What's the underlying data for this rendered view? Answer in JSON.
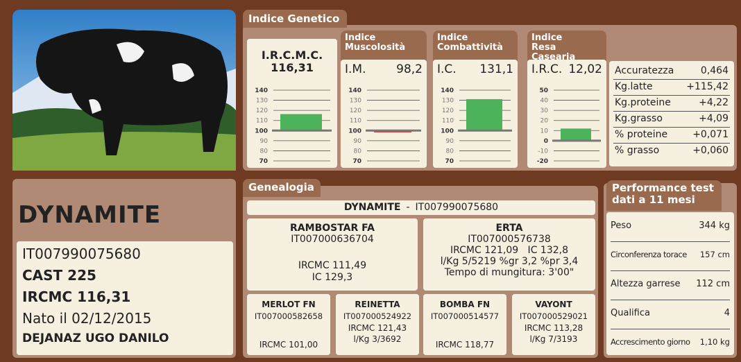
{
  "genetic_index": {
    "title": "Indice Genetico",
    "gauges": [
      {
        "name": "I.R.C.M.C.",
        "value": 116.31,
        "value_label": "116,31",
        "ylim": [
          70,
          140
        ],
        "yticks": [
          140,
          130,
          120,
          110,
          100,
          90,
          80,
          70
        ],
        "baseline": 100,
        "color": "#4cb35a"
      },
      {
        "heading": [
          "Indice",
          "Muscolosità"
        ],
        "name": "I.M.",
        "value": 98.2,
        "value_label": "98,2",
        "ylim": [
          70,
          140
        ],
        "yticks": [
          140,
          130,
          120,
          110,
          100,
          90,
          80,
          70
        ],
        "baseline": 100,
        "color": "#d23a35"
      },
      {
        "heading": [
          "Indice",
          "Combattività"
        ],
        "name": "I.C.",
        "value": 131.1,
        "value_label": "131,1",
        "ylim": [
          70,
          140
        ],
        "yticks": [
          140,
          130,
          120,
          110,
          100,
          90,
          80,
          70
        ],
        "baseline": 100,
        "color": "#4cb35a"
      },
      {
        "heading": [
          "Indice",
          "Resa Casearia"
        ],
        "name": "I.R.C.",
        "value": 12.02,
        "value_label": "12,02",
        "ylim": [
          -20,
          50
        ],
        "yticks": [
          50,
          40,
          30,
          20,
          10,
          0,
          -10,
          -20
        ],
        "baseline": 0,
        "color": "#4cb35a"
      }
    ],
    "resa_table": [
      [
        "Accuratezza",
        "0,464"
      ],
      [
        "Kg.latte",
        "+115,42"
      ],
      [
        "Kg.proteine",
        "+4,22"
      ],
      [
        "Kg.grasso",
        "+4,09"
      ],
      [
        "% proteine",
        "+0,071"
      ],
      [
        "% grasso",
        "+0,060"
      ]
    ]
  },
  "animal": {
    "name": "DYNAMITE",
    "id": "IT007990075680",
    "cast": "CAST 225",
    "ircmc": "IRCMC 116,31",
    "born": "Nato il 02/12/2015",
    "owner": "DEJANAZ UGO DANILO"
  },
  "genealogy": {
    "title": "Genealogia",
    "subject": {
      "name": "DYNAMITE",
      "separator": "-",
      "id": "IT007990075680"
    },
    "sire": {
      "name": "RAMBOSTAR FA",
      "id": "IT007000636704",
      "lines": [
        "IRCMC 111,49",
        "IC 129,3"
      ]
    },
    "dam": {
      "name": "ERTA",
      "id": "IT007000576738",
      "lines": [
        "IRCMC 121,09   IC 132,8",
        "l/Kg 5/5219 %gr 3,2 %pr 3,4",
        "Tempo di mungitura: 3'00\""
      ]
    },
    "grandparents": [
      {
        "name": "MERLOT FN",
        "id": "IT007000582658",
        "lines": [
          "IRCMC 101,00"
        ]
      },
      {
        "name": "REINETTA",
        "id": "IT007000524922",
        "lines": [
          "IRCMC 121,43",
          "l/Kg 3/3692"
        ]
      },
      {
        "name": "BOMBA FN",
        "id": "IT007000514577",
        "lines": [
          "IRCMC 118,77"
        ]
      },
      {
        "name": "VAYONT",
        "id": "IT007000529021",
        "lines": [
          "IRCMC 113,28",
          "l/Kg 7/3193"
        ]
      }
    ]
  },
  "performance": {
    "title": [
      "Performance test",
      "dati a 11 mesi"
    ],
    "rows": [
      [
        "Peso",
        "344 kg"
      ],
      [
        "Circonferenza torace",
        "157 cm"
      ],
      [
        "Altezza garrese",
        "112 cm"
      ],
      [
        "Qualifica",
        "4"
      ],
      [
        "Accrescimento giorno",
        "1,10 kg"
      ]
    ]
  }
}
